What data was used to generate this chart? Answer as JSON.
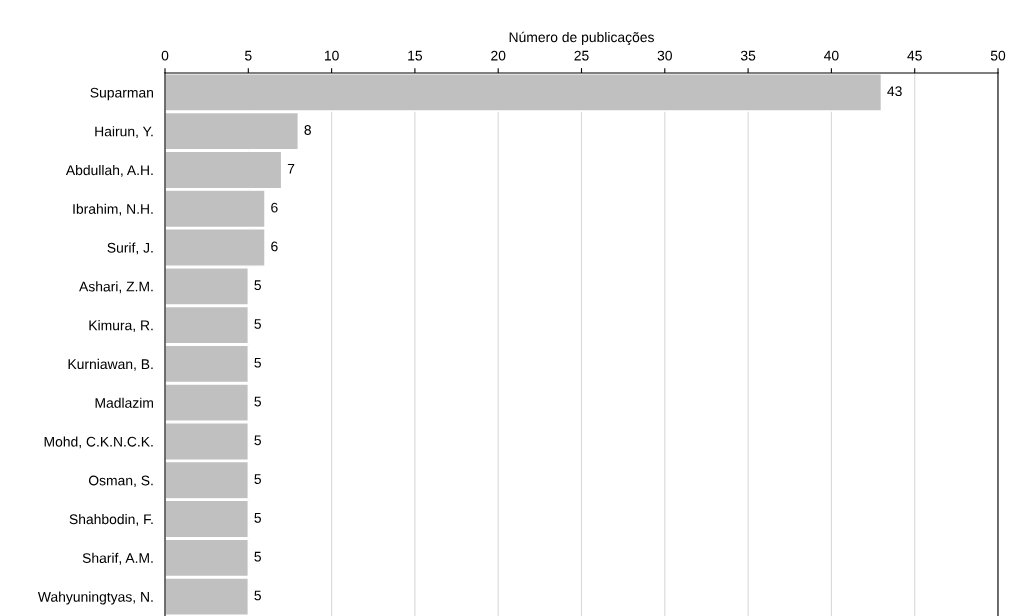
{
  "chart_data": {
    "type": "bar",
    "orientation": "horizontal",
    "xlabel": "Número de publicações",
    "categories": [
      "Suparman",
      "Hairun, Y.",
      "Abdullah, A.H.",
      "Ibrahim, N.H.",
      "Surif, J.",
      "Ashari, Z.M.",
      "Kimura, R.",
      "Kurniawan, B.",
      "Madlazim",
      "Mohd, C.K.N.C.K.",
      "Osman, S.",
      "Shahbodin, F.",
      "Sharif, A.M.",
      "Wahyuningtyas, N."
    ],
    "values": [
      43,
      8,
      7,
      6,
      6,
      5,
      5,
      5,
      5,
      5,
      5,
      5,
      5,
      5
    ],
    "color": "#c0c0c0",
    "xlim": [
      0,
      50
    ],
    "xticks": [
      0,
      5,
      10,
      15,
      20,
      25,
      30,
      35,
      40,
      45,
      50
    ],
    "grid": "x",
    "data_labels": true
  }
}
